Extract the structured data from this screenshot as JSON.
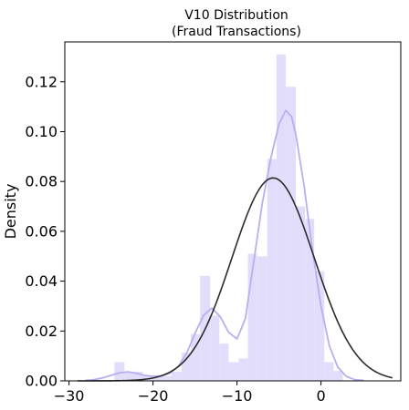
{
  "chart_data": {
    "type": "bar",
    "title_lines": [
      "V10 Distribution",
      "(Fraud Transactions)"
    ],
    "xlabel": "",
    "ylabel": "Density",
    "xlim": [
      -30.5,
      9.5
    ],
    "ylim": [
      0,
      0.136
    ],
    "x_ticks": [
      -30,
      -20,
      -10,
      0
    ],
    "x_tick_labels": [
      "−30",
      "−20",
      "−10",
      "0"
    ],
    "y_ticks": [
      0.0,
      0.02,
      0.04,
      0.06,
      0.08,
      0.1,
      0.12
    ],
    "y_tick_labels": [
      "0.00",
      "0.02",
      "0.04",
      "0.06",
      "0.08",
      "0.10",
      "0.12"
    ],
    "grid": false,
    "histogram": {
      "color": "#e2ddfb",
      "bins": [
        {
          "x0": -24.6,
          "x1": -23.4,
          "y": 0.0075
        },
        {
          "x0": -23.4,
          "x1": -22.3,
          "y": 0.0037
        },
        {
          "x0": -22.3,
          "x1": -21.2,
          "y": 0.0037
        },
        {
          "x0": -21.2,
          "x1": -20.0,
          "y": 0.0019
        },
        {
          "x0": -20.0,
          "x1": -18.9,
          "y": 0.0019
        },
        {
          "x0": -18.9,
          "x1": -17.8,
          "y": 0.0019
        },
        {
          "x0": -17.8,
          "x1": -16.6,
          "y": 0.0037
        },
        {
          "x0": -16.6,
          "x1": -15.5,
          "y": 0.0113
        },
        {
          "x0": -15.5,
          "x1": -14.4,
          "y": 0.0188
        },
        {
          "x0": -14.4,
          "x1": -13.2,
          "y": 0.0421
        },
        {
          "x0": -13.2,
          "x1": -12.1,
          "y": 0.0262
        },
        {
          "x0": -12.1,
          "x1": -11.0,
          "y": 0.015
        },
        {
          "x0": -11.0,
          "x1": -9.8,
          "y": 0.0075
        },
        {
          "x0": -9.8,
          "x1": -8.7,
          "y": 0.009
        },
        {
          "x0": -8.7,
          "x1": -7.6,
          "y": 0.051
        },
        {
          "x0": -7.6,
          "x1": -6.4,
          "y": 0.05
        },
        {
          "x0": -6.4,
          "x1": -5.3,
          "y": 0.089
        },
        {
          "x0": -5.3,
          "x1": -4.2,
          "y": 0.131
        },
        {
          "x0": -4.2,
          "x1": -3.0,
          "y": 0.118
        },
        {
          "x0": -3.0,
          "x1": -1.9,
          "y": 0.07
        },
        {
          "x0": -1.9,
          "x1": -0.8,
          "y": 0.065
        },
        {
          "x0": -0.8,
          "x1": 0.4,
          "y": 0.044
        },
        {
          "x0": 0.4,
          "x1": 1.5,
          "y": 0.0075
        },
        {
          "x0": 1.5,
          "x1": 2.6,
          "y": 0.004
        }
      ]
    },
    "kde": {
      "color": "#b9aeef",
      "points": [
        [
          -28,
          0.0002
        ],
        [
          -27,
          0.0005
        ],
        [
          -26,
          0.0012
        ],
        [
          -25,
          0.0022
        ],
        [
          -24,
          0.0032
        ],
        [
          -23,
          0.0036
        ],
        [
          -22,
          0.003
        ],
        [
          -21,
          0.0022
        ],
        [
          -20,
          0.0018
        ],
        [
          -19,
          0.002
        ],
        [
          -18,
          0.003
        ],
        [
          -17,
          0.0058
        ],
        [
          -16,
          0.011
        ],
        [
          -15,
          0.019
        ],
        [
          -14,
          0.0262
        ],
        [
          -13,
          0.0292
        ],
        [
          -12,
          0.0258
        ],
        [
          -11,
          0.0195
        ],
        [
          -10,
          0.0168
        ],
        [
          -9,
          0.025
        ],
        [
          -8,
          0.048
        ],
        [
          -7,
          0.071
        ],
        [
          -6,
          0.089
        ],
        [
          -5,
          0.103
        ],
        [
          -4.2,
          0.1085
        ],
        [
          -3.5,
          0.106
        ],
        [
          -3,
          0.099
        ],
        [
          -2,
          0.078
        ],
        [
          -1,
          0.052
        ],
        [
          0,
          0.03
        ],
        [
          1,
          0.014
        ],
        [
          2,
          0.0055
        ],
        [
          3,
          0.0018
        ],
        [
          4,
          0.0005
        ],
        [
          5,
          0.0002
        ]
      ]
    },
    "normal_fit": {
      "color": "#2b2b2b",
      "mean": -5.7,
      "std": 4.9,
      "x_range": [
        -29,
        8.5
      ]
    }
  }
}
